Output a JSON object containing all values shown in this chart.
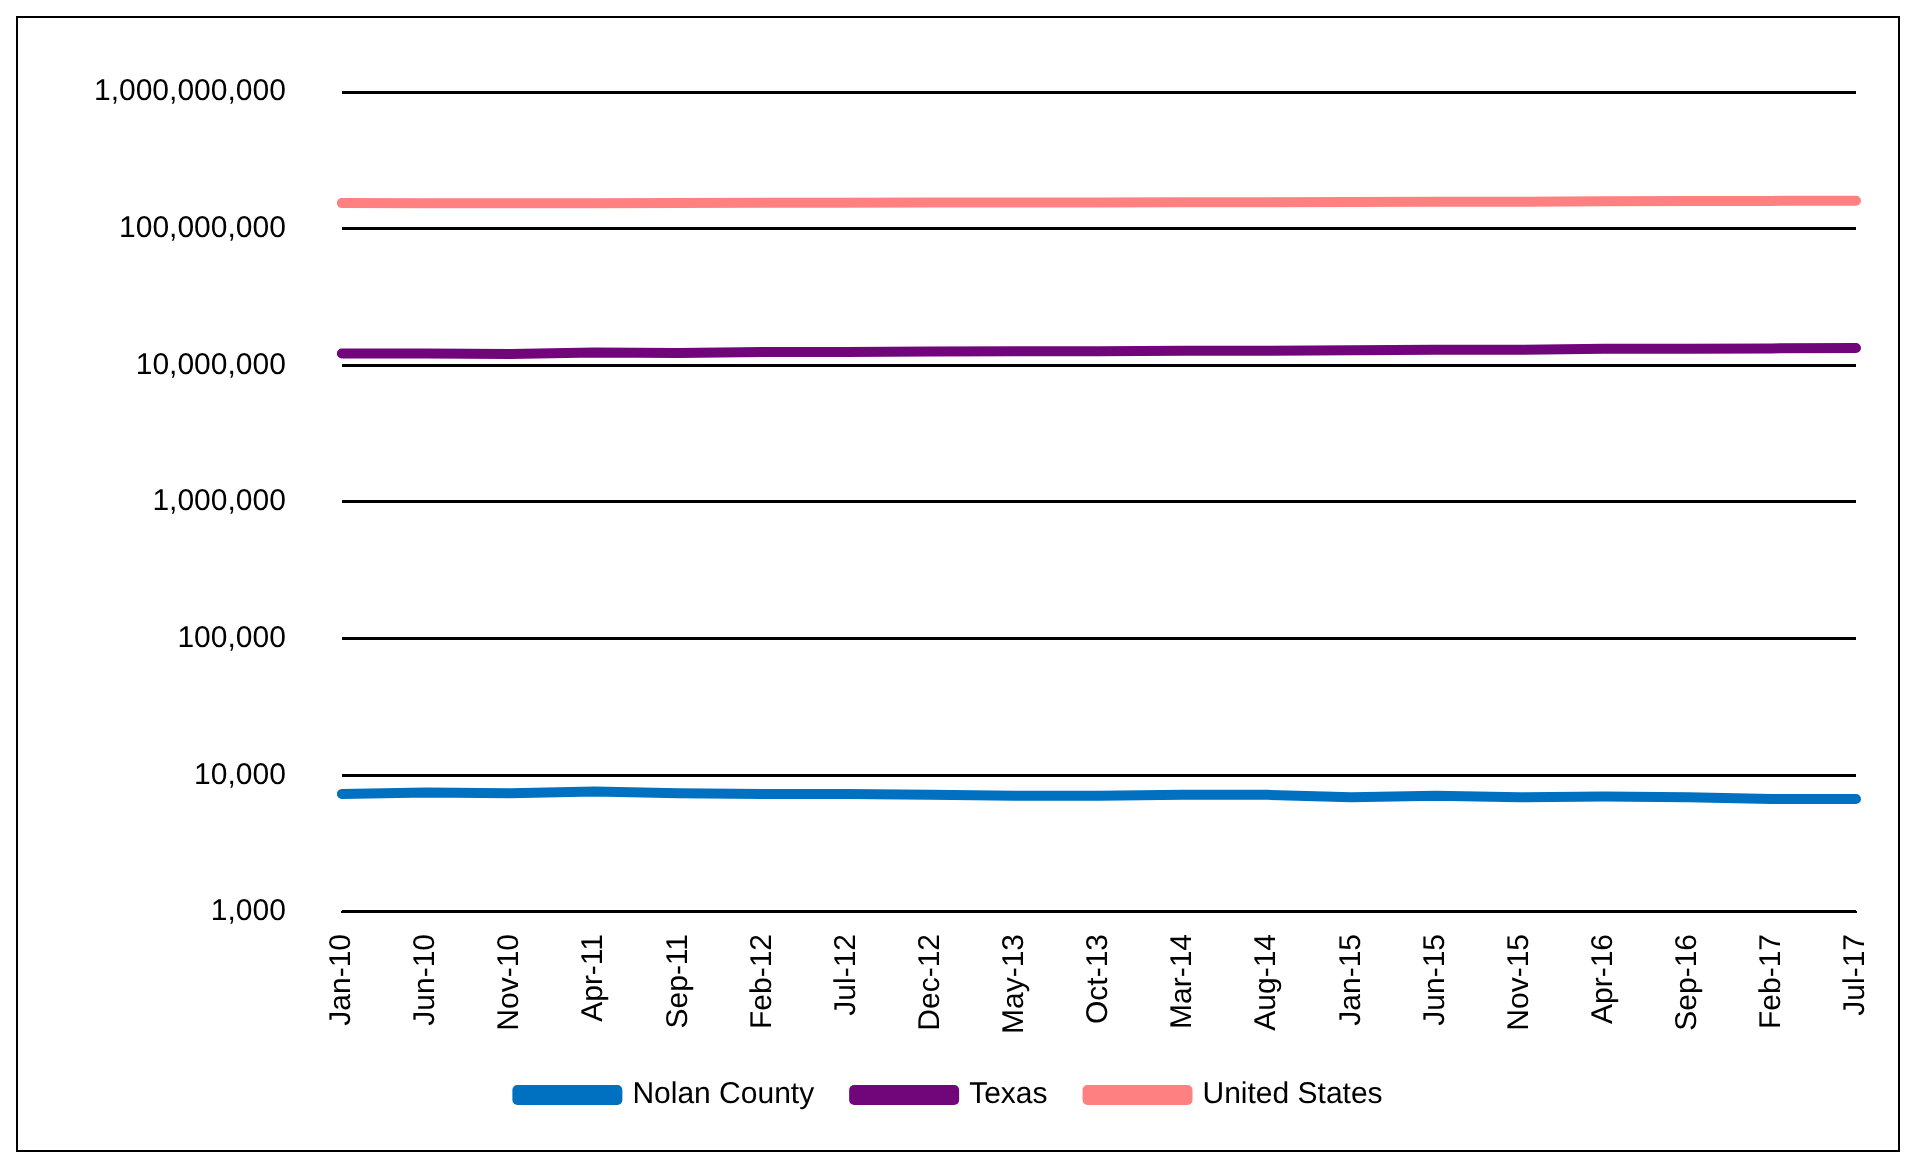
{
  "chart_data": {
    "type": "line",
    "categories": [
      "Jan-10",
      "Jun-10",
      "Nov-10",
      "Apr-11",
      "Sep-11",
      "Feb-12",
      "Jul-12",
      "Dec-12",
      "May-13",
      "Oct-13",
      "Mar-14",
      "Aug-14",
      "Jan-15",
      "Jun-15",
      "Nov-15",
      "Apr-16",
      "Sep-16",
      "Feb-17",
      "Jul-17"
    ],
    "series": [
      {
        "name": "Nolan County",
        "color": "#0070c0",
        "values": [
          7300,
          7500,
          7400,
          7600,
          7400,
          7300,
          7300,
          7200,
          7100,
          7100,
          7200,
          7200,
          6900,
          7100,
          6900,
          7000,
          6900,
          6700,
          6700
        ]
      },
      {
        "name": "Texas",
        "color": "#70067a",
        "values": [
          12200000,
          12200000,
          12100000,
          12400000,
          12300000,
          12500000,
          12500000,
          12600000,
          12700000,
          12700000,
          12800000,
          12800000,
          12900000,
          13000000,
          13000000,
          13200000,
          13200000,
          13300000,
          13400000
        ]
      },
      {
        "name": "United States",
        "color": "#ff8080",
        "values": [
          153800000,
          153600000,
          153400000,
          153500000,
          153900000,
          154800000,
          155000000,
          155500000,
          155600000,
          155400000,
          155900000,
          156100000,
          157000000,
          157100000,
          157400000,
          158900000,
          159400000,
          159700000,
          160100000
        ]
      }
    ],
    "ylim": [
      1000,
      1000000000
    ],
    "yticks": [
      {
        "value": 1000,
        "label": "1,000"
      },
      {
        "value": 10000,
        "label": "10,000"
      },
      {
        "value": 100000,
        "label": "100,000"
      },
      {
        "value": 1000000,
        "label": "1,000,000"
      },
      {
        "value": 10000000,
        "label": "10,000,000"
      },
      {
        "value": 100000000,
        "label": "100,000,000"
      },
      {
        "value": 1000000000,
        "label": "1,000,000,000"
      }
    ],
    "log": "y",
    "grid": "y",
    "legend": "bottom",
    "marker": "none",
    "line_style": "solid"
  }
}
